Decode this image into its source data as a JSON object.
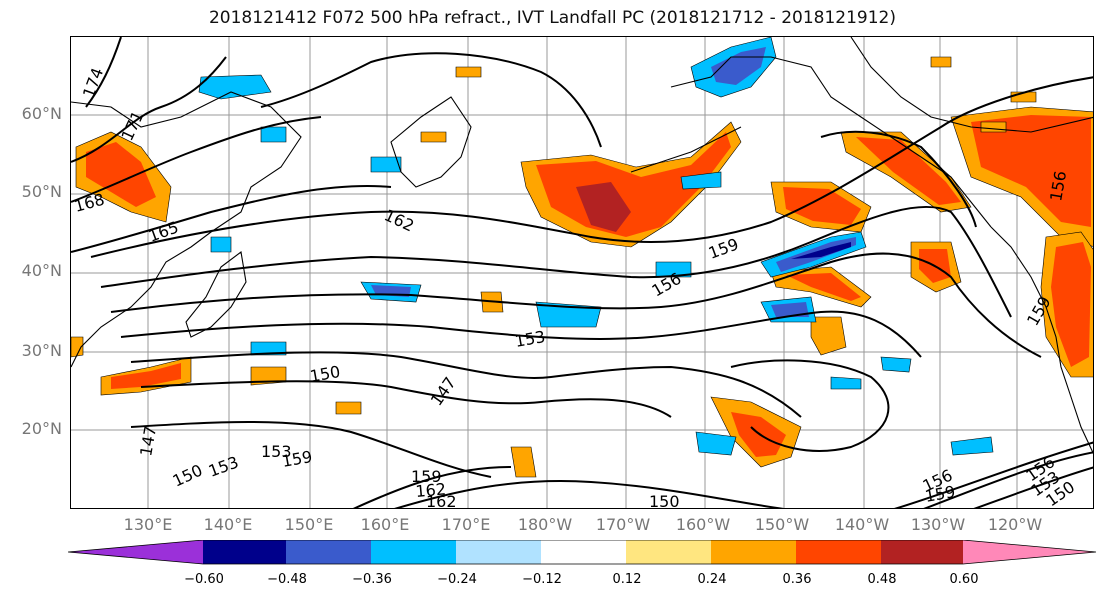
{
  "title": "2018121412 F072 500 hPa refract., IVT Landfall PC (2018121712 - 2018121912)",
  "lat_labels": [
    "60°N",
    "50°N",
    "40°N",
    "30°N",
    "20°N"
  ],
  "lon_labels": [
    "130°E",
    "140°E",
    "150°E",
    "160°E",
    "170°E",
    "180°W",
    "170°W",
    "160°W",
    "150°W",
    "140°W",
    "130°W",
    "120°W"
  ],
  "contour_labels": [
    "174",
    "171",
    "168",
    "165",
    "162",
    "159",
    "156",
    "153",
    "150",
    "147",
    "153",
    "150",
    "147",
    "159",
    "162",
    "150",
    "156",
    "159",
    "156",
    "153",
    "150",
    "159",
    "156",
    "153",
    "159",
    "162"
  ],
  "colorbar": {
    "ticks": [
      "−0.60",
      "−0.48",
      "−0.36",
      "−0.24",
      "−0.12",
      "0.12",
      "0.24",
      "0.36",
      "0.48",
      "0.60"
    ],
    "colors": [
      "#9b30d9",
      "#00008b",
      "#3a5bcc",
      "#00bfff",
      "#b0e2ff",
      "#ffffff",
      "#ffe680",
      "#ffa500",
      "#ff4500",
      "#b22222",
      "#ff88b8"
    ]
  }
}
